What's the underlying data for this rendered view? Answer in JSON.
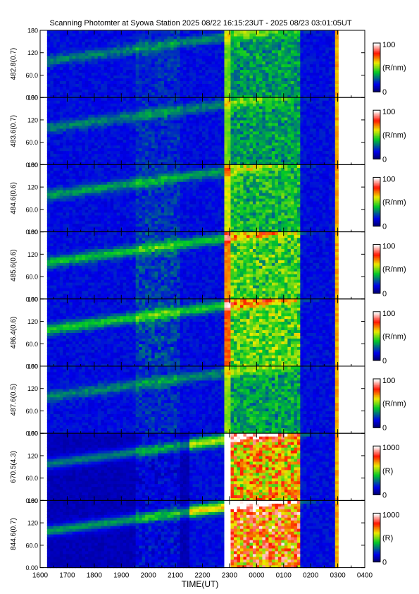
{
  "title": "Scanning Photomter at Syowa Station 2025 08/22 16:15:23UT - 2025 08/23 03:01:05UT",
  "chart_data": {
    "type": "heatmap",
    "title": "Scanning Photomter at Syowa Station 2025 08/22 16:15:23UT - 2025 08/23 03:01:05UT",
    "xlabel": "TIME(UT)",
    "x_ticks": [
      "1600",
      "1700",
      "1800",
      "1900",
      "2000",
      "2100",
      "2200",
      "2300",
      "0000",
      "0100",
      "0200",
      "0300",
      "0400"
    ],
    "xlim_hours": [
      16,
      28
    ],
    "data_range_hours": [
      16.256,
      27.018
    ],
    "y_ticks": [
      "0.00",
      "60.0",
      "120",
      "180"
    ],
    "ylim": [
      0,
      180
    ],
    "colors": {
      "low": "#00007f",
      "mid": "#00c000",
      "high": "#ff0000",
      "max": "#ffffff"
    },
    "panels": [
      {
        "name": "482.8(0.7)",
        "scale_min": "0",
        "scale_max": "100",
        "unit": "(R/nm)",
        "max_value": 100,
        "intensity": 0.3
      },
      {
        "name": "483.6(0.7)",
        "scale_min": "0",
        "scale_max": "100",
        "unit": "(R/nm)",
        "max_value": 100,
        "intensity": 0.3
      },
      {
        "name": "484.6(0.6)",
        "scale_min": "0",
        "scale_max": "100",
        "unit": "(R/nm)",
        "max_value": 100,
        "intensity": 0.38
      },
      {
        "name": "485.6(0.6)",
        "scale_min": "0",
        "scale_max": "100",
        "unit": "(R/nm)",
        "max_value": 100,
        "intensity": 0.48
      },
      {
        "name": "486.4(0.6)",
        "scale_min": "0",
        "scale_max": "100",
        "unit": "(R/nm)",
        "max_value": 100,
        "intensity": 0.52
      },
      {
        "name": "487.6(0.5)",
        "scale_min": "0",
        "scale_max": "100",
        "unit": "(R/nm)",
        "max_value": 100,
        "intensity": 0.32
      },
      {
        "name": "670.5(4.3)",
        "scale_min": "0",
        "scale_max": "1000",
        "unit": "(R)",
        "max_value": 1000,
        "intensity": 0.8
      },
      {
        "name": "844.6(0.7)",
        "scale_min": "0",
        "scale_max": "1000",
        "unit": "(R)",
        "max_value": 1000,
        "intensity": 0.95
      }
    ]
  }
}
